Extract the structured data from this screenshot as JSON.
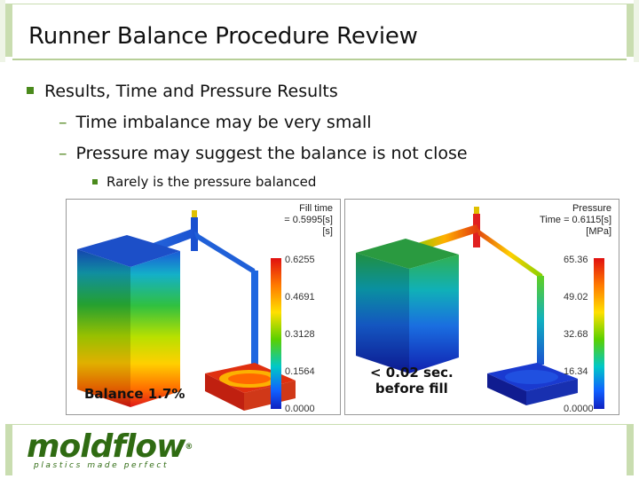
{
  "slide": {
    "title": "Runner Balance Procedure Review"
  },
  "bullets": {
    "level1": "Results, Time and Pressure Results",
    "level2": [
      "Time imbalance may be very small",
      "Pressure may suggest the balance is not close"
    ],
    "level3": "Rarely is the pressure balanced"
  },
  "fill_panel": {
    "legend_title": "Fill time",
    "legend_value": "= 0.5995[s]",
    "legend_unit": "[s]",
    "ticks": [
      "0.6255",
      "0.4691",
      "0.3128",
      "0.1564",
      "0.0000"
    ],
    "annotation": "Balance 1.7%"
  },
  "pressure_panel": {
    "legend_title": "Pressure",
    "legend_value": "Time = 0.6115[s]",
    "legend_unit": "[MPa]",
    "ticks": [
      "65.36",
      "49.02",
      "32.68",
      "16.34",
      "0.0000"
    ],
    "annotation_line1": "< 0.02 sec.",
    "annotation_line2": "before fill"
  },
  "logo": {
    "word": "moldflow",
    "reg": "®",
    "tagline": "plastics made perfect"
  },
  "colors": {
    "accent_green": "#4a8a1c",
    "frame_green": "#c9ddb0",
    "logo_green": "#2f6b12"
  }
}
